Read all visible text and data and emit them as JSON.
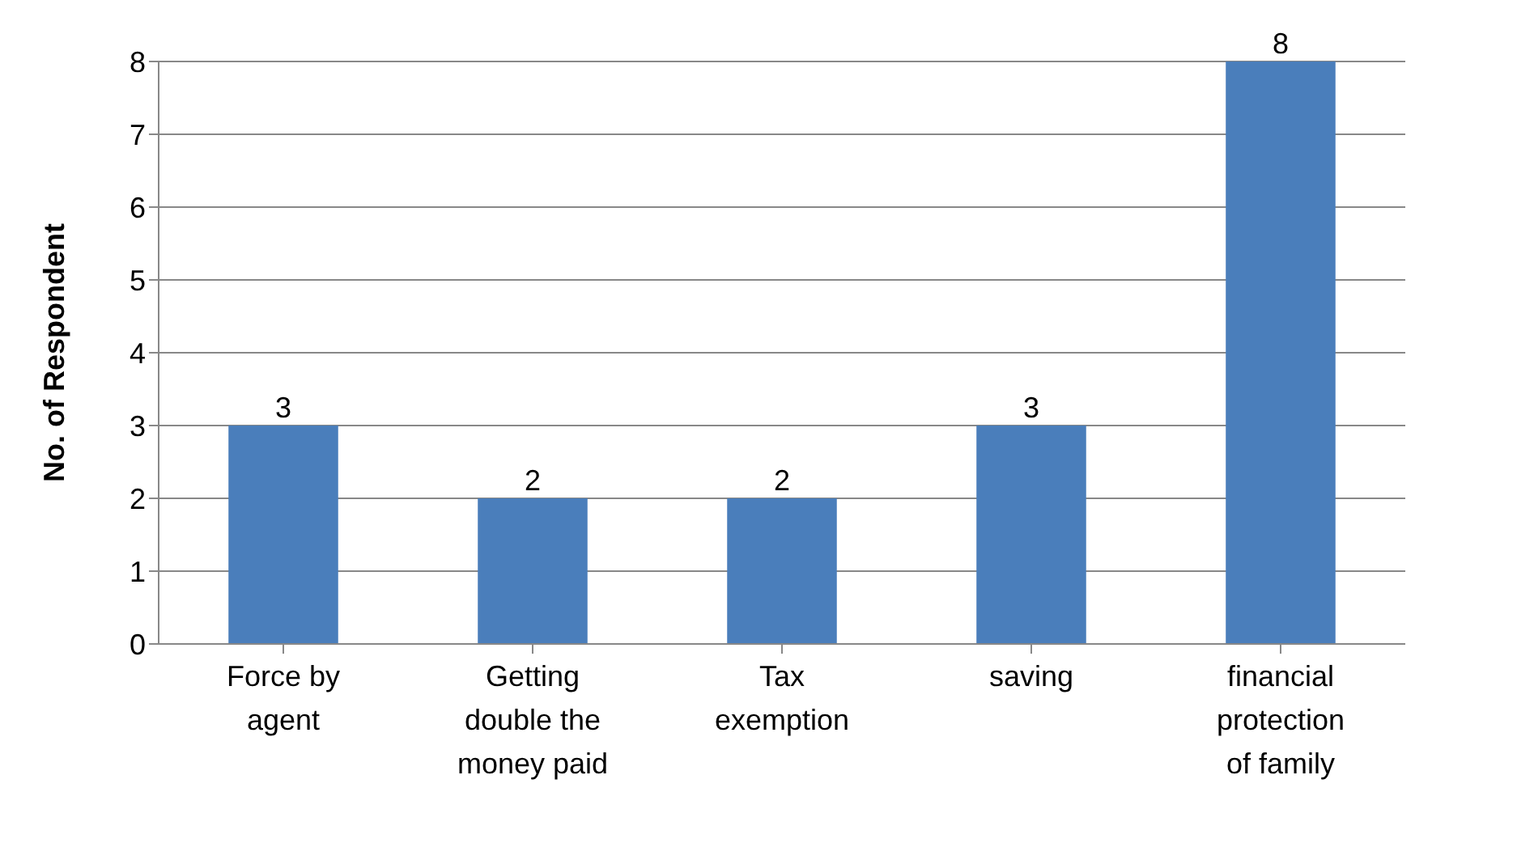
{
  "chart_data": {
    "type": "bar",
    "ylabel": "No. of Respondent",
    "categories": [
      "Force by agent",
      "Getting double the money paid",
      "Tax exemption",
      "saving",
      "financial protection of family"
    ],
    "values": [
      3,
      2,
      2,
      3,
      8
    ],
    "color": "#4a7ebb",
    "ylim": [
      0,
      8
    ],
    "yticks": [
      0,
      1,
      2,
      3,
      4,
      5,
      6,
      7,
      8
    ],
    "grid": "y",
    "data_labels": true
  }
}
